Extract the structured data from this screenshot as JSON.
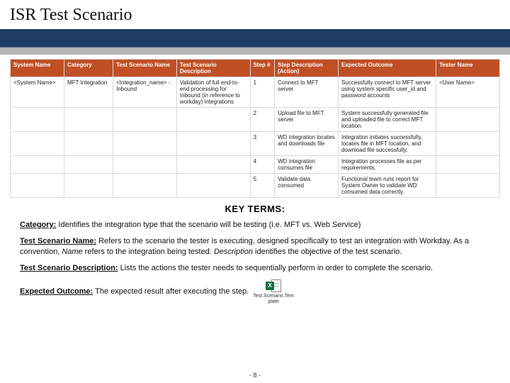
{
  "title": "ISR Test Scenario",
  "colors": {
    "header_band": "#1f3d66",
    "gray_band": "#b5b5b5",
    "table_header_bg": "#c14f25",
    "table_header_fg": "#ffffff",
    "cell_border": "#d9d9d9"
  },
  "table": {
    "col_widths_pct": [
      11,
      10,
      13,
      15,
      5,
      13,
      20,
      13
    ],
    "headers": [
      "System Name",
      "Category",
      "Test Scenario Name",
      "Test Scenario Description",
      "Step #",
      "Step Description (Action)",
      "Expected Outcome",
      "Tester Name"
    ],
    "rows": [
      {
        "system": "<System Name>",
        "category": "MFT Integration",
        "scenario_name": "<Integration_name> - Inbound",
        "scenario_desc": "Validation of full end-to-end processing for Inbound (in reference to workday) integrations",
        "step": "1",
        "step_desc": "Connect to MFT server",
        "outcome": "Successfully connect to MFT server using system specific user_id and password accounts",
        "tester": "<User Name>"
      },
      {
        "system": "",
        "category": "",
        "scenario_name": "",
        "scenario_desc": "",
        "step": "2",
        "step_desc": "Upload file to MFT server",
        "outcome": "System successfully generated file and uploaded file to correct MFT location.",
        "tester": ""
      },
      {
        "system": "",
        "category": "",
        "scenario_name": "",
        "scenario_desc": "",
        "step": "3",
        "step_desc": "WD integration locates and downloads file",
        "outcome": "Integration initiates successfully, locates file in MFT location, and download file successfully.",
        "tester": ""
      },
      {
        "system": "",
        "category": "",
        "scenario_name": "",
        "scenario_desc": "",
        "step": "4",
        "step_desc": "WD integration consumes file",
        "outcome": "Integration processes file as per requirements.",
        "tester": ""
      },
      {
        "system": "",
        "category": "",
        "scenario_name": "",
        "scenario_desc": "",
        "step": "5",
        "step_desc": "Validate data consumed",
        "outcome": "Functional team runs report for System Owner to validate WD consumed data correctly.",
        "tester": ""
      }
    ]
  },
  "key_terms": {
    "heading": "KEY TERMS:",
    "items": [
      {
        "label": "Category:",
        "text": " Identifies the integration type that the scenario will be testing (i.e. MFT vs. Web Service)"
      },
      {
        "label": "Test Scenario Name:",
        "text_html": " Refers to the scenario the tester is executing, designed specifically to test an integration with Workday. As a convention, <span class='emph'>Name</span> refers to the integration being tested. <span class='emph'>Description</span> identifies the objective of the test scenario."
      },
      {
        "label": "Test Scenario Description:",
        "text": " Lists the actions the tester needs to sequentially perform in order to complete the scenario."
      },
      {
        "label": "Expected Outcome:",
        "text": " The expected result after executing the step.",
        "has_icon": true
      }
    ]
  },
  "excel": {
    "badge": "X",
    "caption_line1": "Test.Scenario.Tem",
    "caption_line2": "plate"
  },
  "page_number": "- 8 -"
}
